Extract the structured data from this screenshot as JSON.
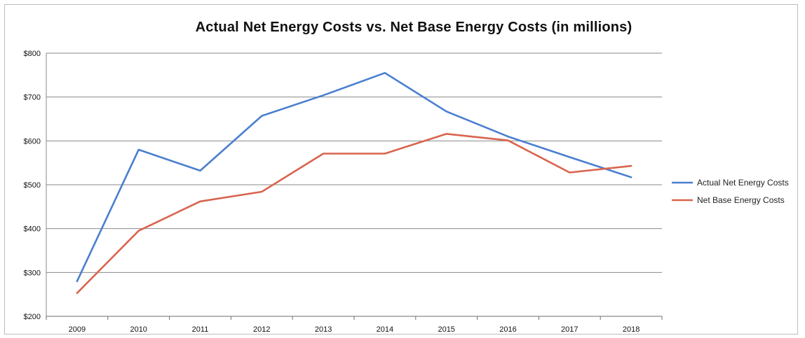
{
  "chart_data": {
    "type": "line",
    "title": "Actual Net Energy Costs vs. Net Base Energy Costs (in millions)",
    "xlabel": "",
    "ylabel": "",
    "categories": [
      "2009",
      "2010",
      "2011",
      "2012",
      "2013",
      "2014",
      "2015",
      "2016",
      "2017",
      "2018"
    ],
    "ylim": [
      200,
      800
    ],
    "yticks": [
      200,
      300,
      400,
      500,
      600,
      700,
      800
    ],
    "ytick_labels": [
      "$200",
      "$300",
      "$400",
      "$500",
      "$600",
      "$700",
      "$800"
    ],
    "grid": true,
    "legend_position": "right",
    "series": [
      {
        "name": "Actual Net Energy Costs",
        "color": "#4a7fd0",
        "values": [
          280,
          580,
          532,
          657,
          704,
          755,
          667,
          610,
          563,
          517
        ]
      },
      {
        "name": "Net Base Energy Costs",
        "color": "#d9644e",
        "values": [
          253,
          395,
          462,
          484,
          571,
          571,
          616,
          601,
          528,
          543
        ]
      }
    ]
  }
}
